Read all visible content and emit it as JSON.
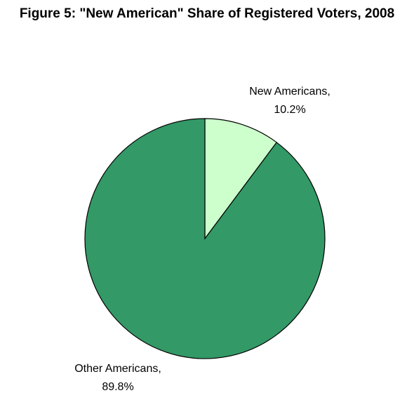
{
  "chart_data": {
    "type": "pie",
    "title": "Figure 5: \"New American\" Share of Registered Voters, 2008",
    "slices": [
      {
        "name": "New Americans,",
        "value": 10.2,
        "value_label": "10.2%",
        "color": "#ccffcc"
      },
      {
        "name": "Other Americans,",
        "value": 89.8,
        "value_label": "89.8%",
        "color": "#339966"
      }
    ],
    "start_angle": "12 o'clock",
    "direction": "clockwise",
    "legend": "none"
  }
}
